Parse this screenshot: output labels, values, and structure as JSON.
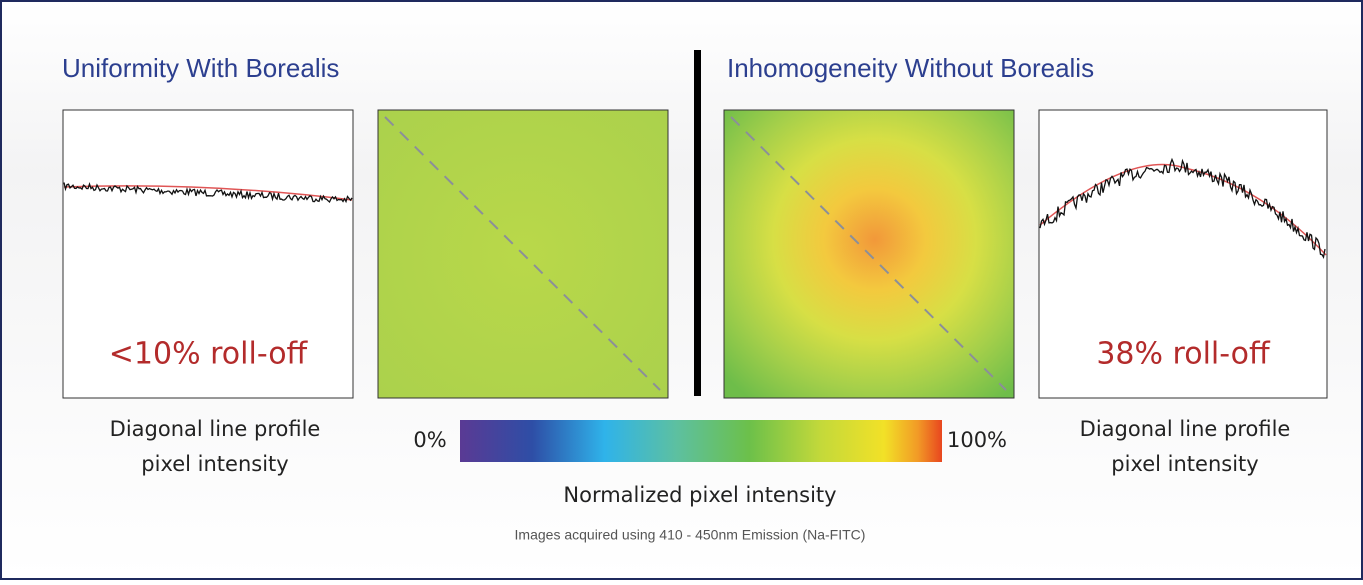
{
  "left": {
    "title": "Uniformity With Borealis",
    "rolloff": "<10% roll-off",
    "caption": [
      "Diagonal line profile",
      "pixel intensity"
    ]
  },
  "right": {
    "title": "Inhomogeneity Without Borealis",
    "rolloff": "38% roll-off",
    "caption": [
      "Diagonal line profile",
      "pixel intensity"
    ]
  },
  "colorbar": {
    "min_label": "0%",
    "max_label": "100%",
    "label": "Normalized pixel intensity"
  },
  "footnote": "Images acquired using 410 - 450nm Emission (Na-FITC)"
}
